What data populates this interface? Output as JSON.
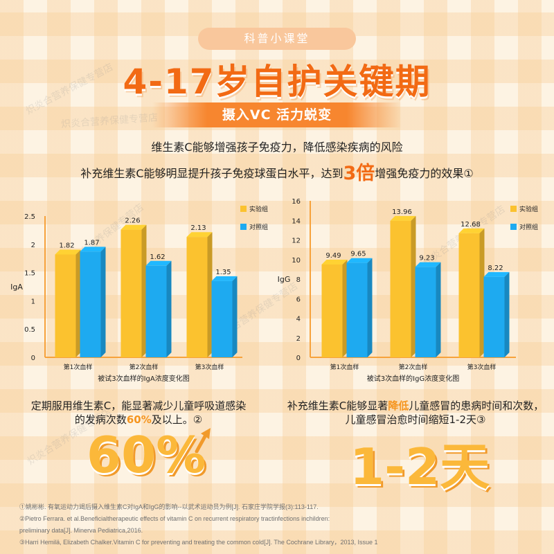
{
  "header": {
    "pill": "科普小课堂",
    "headline": "4-17岁自护关键期",
    "banner": "摄入VC 活力蜕变"
  },
  "intro": {
    "line1": "维生素C能够增强孩子免疫力，降低感染疾病的风险",
    "line2_pre": "补充维生素C能够明显提升孩子免疫球蛋白水平，达到",
    "line2_highlight": "3倍",
    "line2_post": "增强免疫力的效果①"
  },
  "colors": {
    "accent": "#f26a14",
    "experiment": "#fbc22f",
    "control": "#1eaaf0",
    "number": "#fbb83a"
  },
  "chart_data": [
    {
      "type": "bar",
      "title": "被试3次血样的IgA浓度变化图",
      "ylabel": "IgA",
      "categories": [
        "第1次血样",
        "第2次血样",
        "第3次血样"
      ],
      "ylim": [
        0,
        2.5
      ],
      "yticks": [
        "0",
        "0.5",
        "1",
        "1.5",
        "2",
        "2.5"
      ],
      "legend_position": "top-right",
      "series": [
        {
          "name": "实验组",
          "values": [
            1.82,
            2.26,
            2.13
          ],
          "labels": [
            "1.82",
            "2.26",
            "2.13"
          ],
          "color": "#fbc22f"
        },
        {
          "name": "对照组",
          "values": [
            1.87,
            1.62,
            1.35
          ],
          "labels": [
            "1.87",
            "1.62",
            "1.35"
          ],
          "color": "#1eaaf0"
        }
      ]
    },
    {
      "type": "bar",
      "title": "被试3次血样的IgG浓度变化图",
      "ylabel": "IgG",
      "categories": [
        "第1次血样",
        "第2次血样",
        "第3次血样"
      ],
      "ylim": [
        0,
        16
      ],
      "yticks": [
        "0",
        "2",
        "4",
        "6",
        "8",
        "10",
        "12",
        "14",
        "16"
      ],
      "legend_position": "top-right",
      "series": [
        {
          "name": "实验组",
          "values": [
            9.49,
            13.96,
            12.68
          ],
          "labels": [
            "9.49",
            "13.96",
            "12.68"
          ],
          "color": "#fbc22f"
        },
        {
          "name": "对照组",
          "values": [
            9.65,
            9.23,
            8.22
          ],
          "labels": [
            "9.65",
            "9.23",
            "8.22"
          ],
          "color": "#1eaaf0"
        }
      ]
    }
  ],
  "left_stat": {
    "line1": "定期服用维生素C，能显著减少儿童呼吸道感染",
    "line2_pre": "的发病次数",
    "line2_highlight": "60%",
    "line2_post": "及以上。②",
    "big": "60%"
  },
  "right_stat": {
    "line1_pre": "补充维生素C能够显著",
    "line1_highlight": "降低",
    "line1_post": "儿童感冒的患病时间和次数，",
    "line2": "儿童感冒治愈时间缩短1-2天③",
    "big": "1-2天"
  },
  "references": [
    "①姚彬彬. 有氧运动力竭后摄入维生素C对IgA和IgG的影响--以武术运动员为例[J]. 石家庄学院学报(3):113-117.",
    "②Pietro Ferrara. et al.Beneficialtherapeutic effects of vitamin C on recurrent respiratory tractinfections inchildren:",
    "preliminary data[J]. Minerva Pediatrica,2016.",
    "③Harri Hemilä, Elizabeth Chalker.Vitamin C for preventing and treating the common cold[J]. The Cochrane Library，2013, Issue 1"
  ],
  "watermark": "炽炎合营养保健专营店"
}
